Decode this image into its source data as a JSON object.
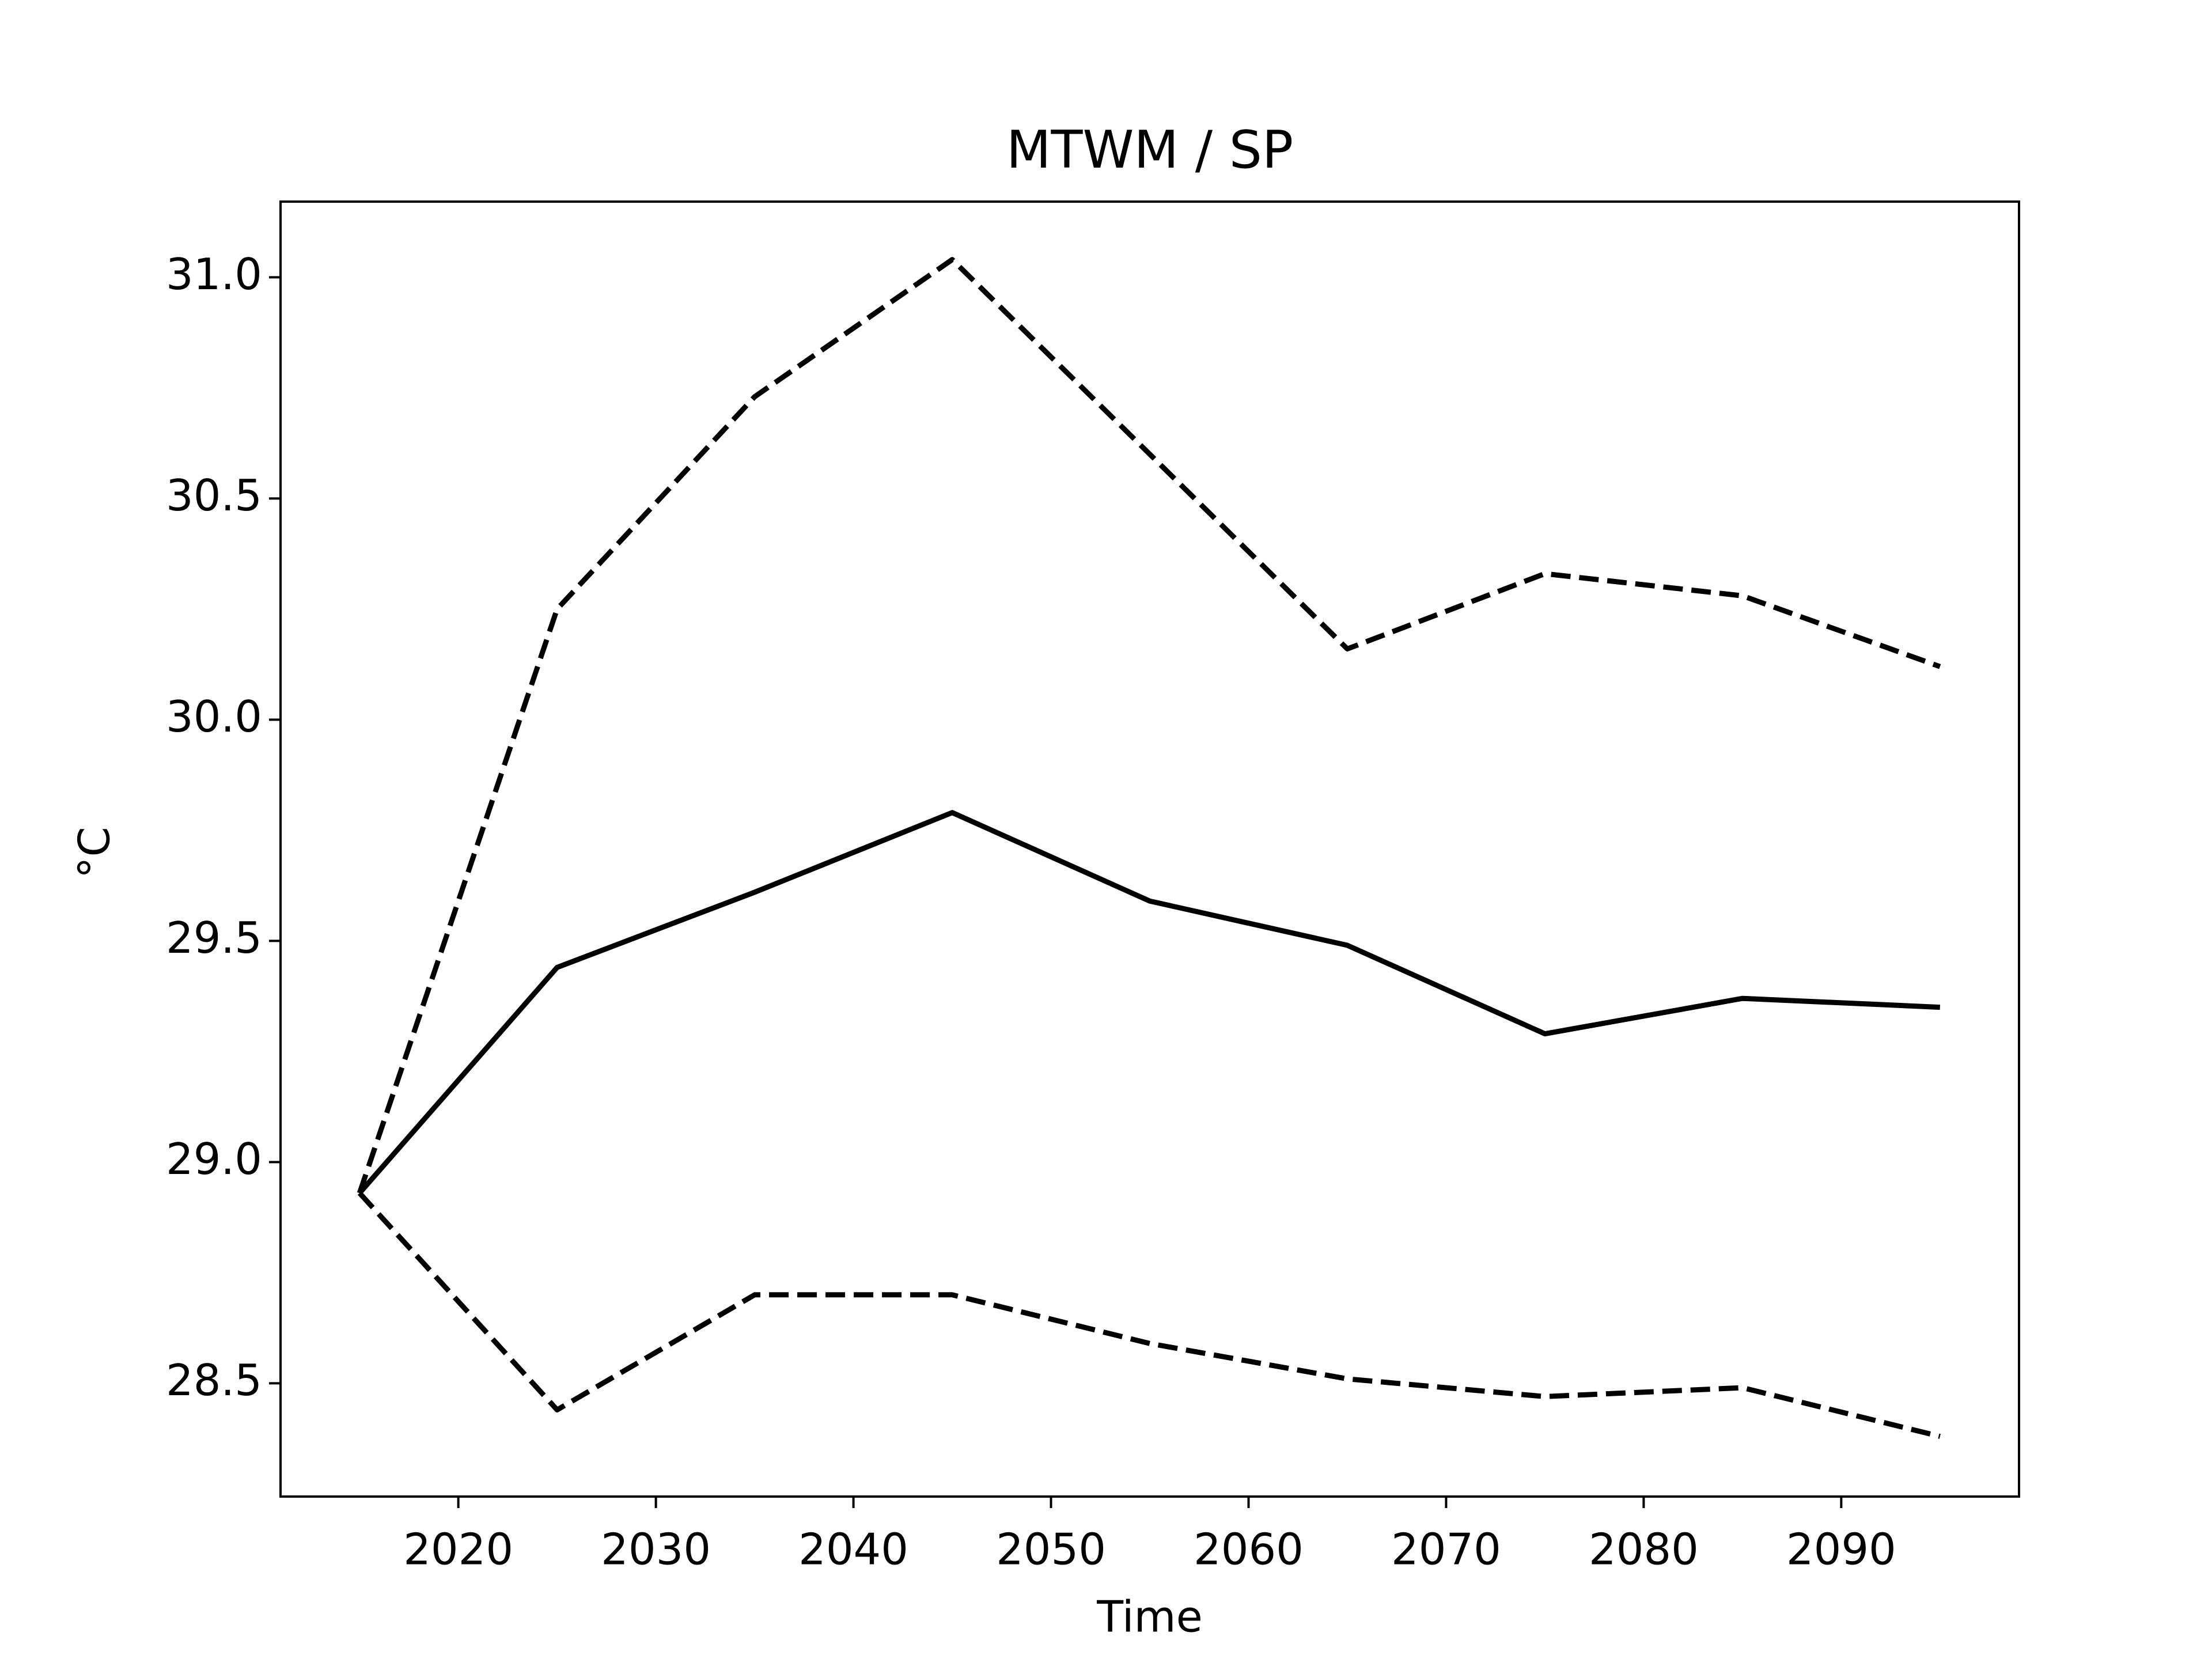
{
  "chart_data": {
    "type": "line",
    "title": "MTWM / SP",
    "xlabel": "Time",
    "ylabel": "°C",
    "x": [
      2015,
      2025,
      2035,
      2045,
      2055,
      2065,
      2075,
      2085,
      2095
    ],
    "series": [
      {
        "color": "#000000",
        "dashed": false,
        "values": [
          28.93,
          29.44,
          29.61,
          29.79,
          29.59,
          29.49,
          29.29,
          29.37,
          29.35
        ]
      },
      {
        "color": "#000000",
        "dashed": true,
        "values": [
          28.93,
          30.25,
          30.73,
          31.04,
          30.6,
          30.16,
          30.33,
          30.28,
          30.12
        ]
      },
      {
        "color": "#000000",
        "dashed": true,
        "values": [
          28.93,
          28.44,
          28.7,
          28.7,
          28.59,
          28.51,
          28.47,
          28.49,
          28.38
        ]
      }
    ],
    "xlim": [
      2011,
      2099
    ],
    "xticks": [
      2020,
      2030,
      2040,
      2050,
      2060,
      2070,
      2080,
      2090
    ],
    "ylim": [
      28.244,
      31.171
    ],
    "yticks": [
      {
        "value": 28.5,
        "label": "28.5"
      },
      {
        "value": 29,
        "label": "29.0"
      },
      {
        "value": 29.5,
        "label": "29.5"
      },
      {
        "value": 30,
        "label": "30.0"
      },
      {
        "value": 30.5,
        "label": "30.5"
      },
      {
        "value": 31,
        "label": "31.0"
      }
    ],
    "grid": false
  }
}
